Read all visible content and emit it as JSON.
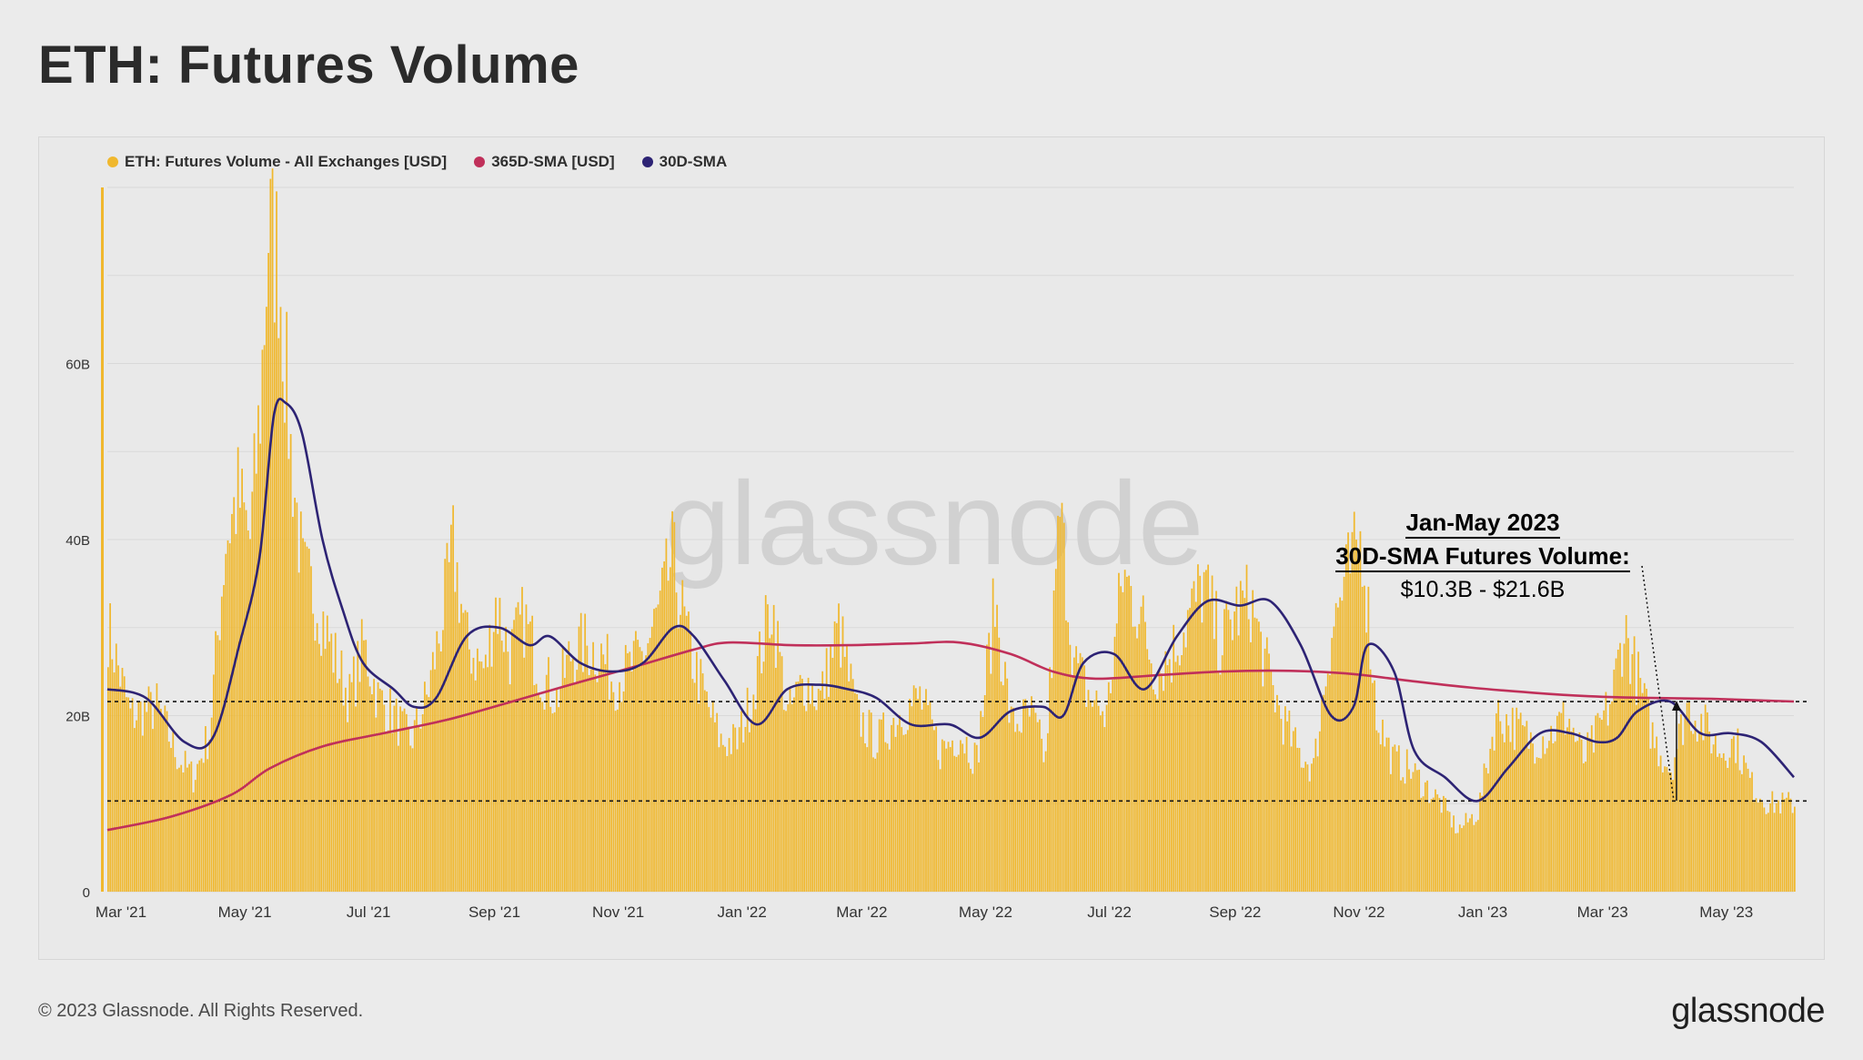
{
  "title": "ETH: Futures Volume",
  "legend": [
    {
      "label": "ETH: Futures Volume - All Exchanges [USD]",
      "color": "#f0b82e"
    },
    {
      "label": "365D-SMA [USD]",
      "color": "#c0305a"
    },
    {
      "label": "30D-SMA",
      "color": "#2d2374"
    }
  ],
  "watermark": "glassnode",
  "annotation": {
    "line1": "Jan-May 2023",
    "line2": "30D-SMA Futures Volume:",
    "line3": "$10.3B - $21.6B"
  },
  "footer": {
    "copyright": "© 2023 Glassnode. All Rights Reserved.",
    "logo": "glassnode"
  },
  "colors": {
    "bars": "#f0b82e",
    "sma365": "#c0305a",
    "sma30": "#2d2374",
    "grid": "#d9d9d9"
  },
  "chart_data": {
    "type": "bar",
    "ylim": [
      0,
      80
    ],
    "y_unit": "B USD",
    "y_ticks": [
      {
        "value": 0,
        "label": "0"
      },
      {
        "value": 20,
        "label": "20B"
      },
      {
        "value": 40,
        "label": "40B"
      },
      {
        "value": 60,
        "label": "60B"
      }
    ],
    "x_range": [
      "2021-03-01",
      "2023-06-10"
    ],
    "x_ticks": [
      {
        "date": "2021-03-01",
        "label": "Mar '21"
      },
      {
        "date": "2021-05-01",
        "label": "May '21"
      },
      {
        "date": "2021-07-01",
        "label": "Jul '21"
      },
      {
        "date": "2021-09-01",
        "label": "Sep '21"
      },
      {
        "date": "2021-11-01",
        "label": "Nov '21"
      },
      {
        "date": "2022-01-01",
        "label": "Jan '22"
      },
      {
        "date": "2022-03-01",
        "label": "Mar '22"
      },
      {
        "date": "2022-05-01",
        "label": "May '22"
      },
      {
        "date": "2022-07-01",
        "label": "Jul '22"
      },
      {
        "date": "2022-09-01",
        "label": "Sep '22"
      },
      {
        "date": "2022-11-01",
        "label": "Nov '22"
      },
      {
        "date": "2023-01-01",
        "label": "Jan '23"
      },
      {
        "date": "2023-03-01",
        "label": "Mar '23"
      },
      {
        "date": "2023-05-01",
        "label": "May '23"
      }
    ],
    "reference_lines": [
      21.6,
      10.3
    ],
    "series": [
      {
        "name": "ETH: Futures Volume - All Exchanges [USD]",
        "type": "bar",
        "points": [
          [
            "2021-03-01",
            30
          ],
          [
            "2021-03-12",
            20
          ],
          [
            "2021-03-25",
            21
          ],
          [
            "2021-04-05",
            15
          ],
          [
            "2021-04-12",
            13
          ],
          [
            "2021-04-20",
            18
          ],
          [
            "2021-04-28",
            40
          ],
          [
            "2021-05-04",
            45
          ],
          [
            "2021-05-10",
            40
          ],
          [
            "2021-05-15",
            55
          ],
          [
            "2021-05-19",
            75
          ],
          [
            "2021-05-24",
            72
          ],
          [
            "2021-05-30",
            50
          ],
          [
            "2021-06-05",
            36
          ],
          [
            "2021-06-12",
            33
          ],
          [
            "2021-06-20",
            27
          ],
          [
            "2021-06-28",
            22
          ],
          [
            "2021-07-05",
            28
          ],
          [
            "2021-07-12",
            22
          ],
          [
            "2021-07-20",
            20
          ],
          [
            "2021-07-28",
            17
          ],
          [
            "2021-08-05",
            22
          ],
          [
            "2021-08-12",
            30
          ],
          [
            "2021-08-18",
            39
          ],
          [
            "2021-08-25",
            28
          ],
          [
            "2021-09-03",
            25
          ],
          [
            "2021-09-08",
            33
          ],
          [
            "2021-09-15",
            27
          ],
          [
            "2021-09-22",
            31
          ],
          [
            "2021-09-30",
            25
          ],
          [
            "2021-10-08",
            22
          ],
          [
            "2021-10-15",
            27
          ],
          [
            "2021-10-22",
            28
          ],
          [
            "2021-10-30",
            27
          ],
          [
            "2021-11-05",
            24
          ],
          [
            "2021-11-12",
            25
          ],
          [
            "2021-11-20",
            27
          ],
          [
            "2021-11-28",
            32
          ],
          [
            "2021-12-04",
            38
          ],
          [
            "2021-12-12",
            28
          ],
          [
            "2021-12-20",
            22
          ],
          [
            "2021-12-28",
            17
          ],
          [
            "2022-01-05",
            17
          ],
          [
            "2022-01-12",
            22
          ],
          [
            "2022-01-22",
            33
          ],
          [
            "2022-01-30",
            20
          ],
          [
            "2022-02-07",
            24
          ],
          [
            "2022-02-15",
            22
          ],
          [
            "2022-02-24",
            30
          ],
          [
            "2022-03-05",
            20
          ],
          [
            "2022-03-15",
            17
          ],
          [
            "2022-03-25",
            20
          ],
          [
            "2022-04-05",
            22
          ],
          [
            "2022-04-15",
            16
          ],
          [
            "2022-04-25",
            18
          ],
          [
            "2022-05-03",
            15
          ],
          [
            "2022-05-12",
            33
          ],
          [
            "2022-05-20",
            19
          ],
          [
            "2022-05-30",
            20
          ],
          [
            "2022-06-06",
            15
          ],
          [
            "2022-06-13",
            43
          ],
          [
            "2022-06-20",
            26
          ],
          [
            "2022-06-28",
            22
          ],
          [
            "2022-07-06",
            20
          ],
          [
            "2022-07-14",
            36
          ],
          [
            "2022-07-22",
            32
          ],
          [
            "2022-07-30",
            25
          ],
          [
            "2022-08-07",
            27
          ],
          [
            "2022-08-15",
            31
          ],
          [
            "2022-08-23",
            35
          ],
          [
            "2022-08-31",
            28
          ],
          [
            "2022-09-08",
            32
          ],
          [
            "2022-09-15",
            33
          ],
          [
            "2022-09-22",
            26
          ],
          [
            "2022-09-30",
            20
          ],
          [
            "2022-10-08",
            16
          ],
          [
            "2022-10-16",
            14
          ],
          [
            "2022-10-25",
            30
          ],
          [
            "2022-11-02",
            36
          ],
          [
            "2022-11-09",
            40
          ],
          [
            "2022-11-16",
            20
          ],
          [
            "2022-11-24",
            15
          ],
          [
            "2022-12-02",
            14
          ],
          [
            "2022-12-10",
            12
          ],
          [
            "2022-12-18",
            10
          ],
          [
            "2022-12-26",
            7
          ],
          [
            "2023-01-05",
            9
          ],
          [
            "2023-01-14",
            20
          ],
          [
            "2023-01-22",
            19
          ],
          [
            "2023-02-01",
            17
          ],
          [
            "2023-02-10",
            18
          ],
          [
            "2023-02-18",
            20
          ],
          [
            "2023-02-26",
            15
          ],
          [
            "2023-03-05",
            18
          ],
          [
            "2023-03-12",
            22
          ],
          [
            "2023-03-18",
            30
          ],
          [
            "2023-03-25",
            24
          ],
          [
            "2023-04-02",
            17
          ],
          [
            "2023-04-10",
            14
          ],
          [
            "2023-04-18",
            21
          ],
          [
            "2023-04-26",
            19
          ],
          [
            "2023-05-04",
            16
          ],
          [
            "2023-05-12",
            17
          ],
          [
            "2023-05-20",
            12
          ],
          [
            "2023-05-28",
            10
          ],
          [
            "2023-06-05",
            10
          ]
        ]
      },
      {
        "name": "365D-SMA [USD]",
        "type": "line",
        "points": [
          [
            "2021-03-01",
            7
          ],
          [
            "2021-04-01",
            8.5
          ],
          [
            "2021-05-01",
            11
          ],
          [
            "2021-05-20",
            14
          ],
          [
            "2021-06-15",
            16.5
          ],
          [
            "2021-07-15",
            18
          ],
          [
            "2021-08-15",
            19.5
          ],
          [
            "2021-09-15",
            21.5
          ],
          [
            "2021-10-15",
            23.5
          ],
          [
            "2021-11-15",
            25.5
          ],
          [
            "2021-12-15",
            27.5
          ],
          [
            "2022-01-01",
            28.3
          ],
          [
            "2022-02-01",
            28
          ],
          [
            "2022-03-01",
            28
          ],
          [
            "2022-04-01",
            28.2
          ],
          [
            "2022-04-25",
            28.3
          ],
          [
            "2022-05-20",
            27
          ],
          [
            "2022-06-10",
            25
          ],
          [
            "2022-07-01",
            24.2
          ],
          [
            "2022-08-01",
            24.6
          ],
          [
            "2022-09-01",
            25
          ],
          [
            "2022-10-01",
            25.1
          ],
          [
            "2022-11-01",
            24.8
          ],
          [
            "2022-12-01",
            24
          ],
          [
            "2023-01-01",
            23.2
          ],
          [
            "2023-02-01",
            22.6
          ],
          [
            "2023-03-01",
            22.2
          ],
          [
            "2023-04-01",
            22
          ],
          [
            "2023-05-01",
            21.9
          ],
          [
            "2023-06-10",
            21.6
          ]
        ]
      },
      {
        "name": "30D-SMA",
        "type": "line",
        "points": [
          [
            "2021-03-01",
            23
          ],
          [
            "2021-03-20",
            22
          ],
          [
            "2021-04-08",
            17
          ],
          [
            "2021-04-22",
            17.5
          ],
          [
            "2021-05-05",
            28
          ],
          [
            "2021-05-15",
            38
          ],
          [
            "2021-05-22",
            54
          ],
          [
            "2021-05-28",
            55.5
          ],
          [
            "2021-06-05",
            52
          ],
          [
            "2021-06-15",
            40
          ],
          [
            "2021-06-25",
            32
          ],
          [
            "2021-07-05",
            26
          ],
          [
            "2021-07-20",
            23
          ],
          [
            "2021-07-30",
            21
          ],
          [
            "2021-08-10",
            22
          ],
          [
            "2021-08-25",
            29
          ],
          [
            "2021-09-10",
            30
          ],
          [
            "2021-09-25",
            28
          ],
          [
            "2021-10-05",
            29
          ],
          [
            "2021-10-20",
            26
          ],
          [
            "2021-11-05",
            25
          ],
          [
            "2021-11-20",
            26
          ],
          [
            "2021-12-05",
            30
          ],
          [
            "2021-12-15",
            29
          ],
          [
            "2021-12-30",
            24
          ],
          [
            "2022-01-15",
            19
          ],
          [
            "2022-01-30",
            23
          ],
          [
            "2022-02-15",
            23.5
          ],
          [
            "2022-03-01",
            23
          ],
          [
            "2022-03-15",
            22
          ],
          [
            "2022-04-01",
            19
          ],
          [
            "2022-04-20",
            19
          ],
          [
            "2022-05-05",
            17.5
          ],
          [
            "2022-05-20",
            20.5
          ],
          [
            "2022-06-05",
            21
          ],
          [
            "2022-06-15",
            20
          ],
          [
            "2022-06-25",
            26
          ],
          [
            "2022-07-10",
            27
          ],
          [
            "2022-07-25",
            23
          ],
          [
            "2022-08-10",
            29
          ],
          [
            "2022-08-25",
            33
          ],
          [
            "2022-09-10",
            32.5
          ],
          [
            "2022-09-25",
            33
          ],
          [
            "2022-10-10",
            28
          ],
          [
            "2022-10-25",
            20
          ],
          [
            "2022-11-05",
            21
          ],
          [
            "2022-11-12",
            28
          ],
          [
            "2022-11-25",
            25
          ],
          [
            "2022-12-05",
            16
          ],
          [
            "2022-12-20",
            13
          ],
          [
            "2023-01-05",
            10.3
          ],
          [
            "2023-01-20",
            14
          ],
          [
            "2023-02-05",
            18
          ],
          [
            "2023-02-20",
            18
          ],
          [
            "2023-03-05",
            17
          ],
          [
            "2023-03-15",
            17.5
          ],
          [
            "2023-03-25",
            20.5
          ],
          [
            "2023-04-10",
            21.6
          ],
          [
            "2023-04-25",
            18
          ],
          [
            "2023-05-10",
            18
          ],
          [
            "2023-05-25",
            17
          ],
          [
            "2023-06-10",
            13
          ]
        ]
      }
    ]
  }
}
